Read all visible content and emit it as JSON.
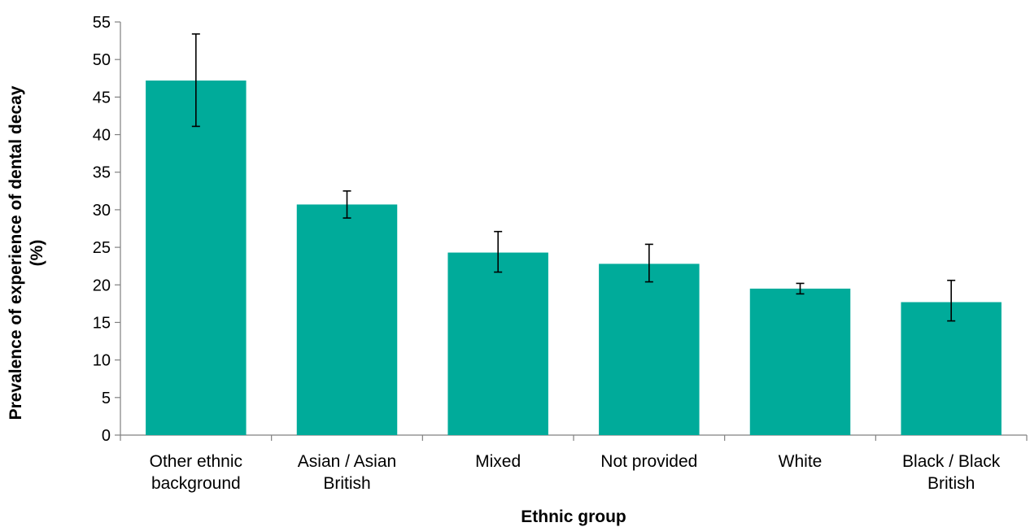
{
  "chart_data": {
    "type": "bar",
    "title": "",
    "xlabel": "Ethnic group",
    "ylabel": "Prevalence of experience of dental decay (%)",
    "ylabel_lines": [
      "Prevalence of experience of dental decay",
      "(%)"
    ],
    "ylim": [
      0,
      55
    ],
    "yticks": [
      0,
      5,
      10,
      15,
      20,
      25,
      30,
      35,
      40,
      45,
      50,
      55
    ],
    "grid": false,
    "legend": "none",
    "bar_color": "#00AB9A",
    "categories": [
      [
        "Other ethnic",
        "background"
      ],
      [
        "Asian / Asian",
        "British"
      ],
      [
        "Mixed"
      ],
      [
        "Not provided"
      ],
      [
        "White"
      ],
      [
        "Black / Black",
        "British"
      ]
    ],
    "values": [
      47.2,
      30.7,
      24.3,
      22.8,
      19.5,
      17.7
    ],
    "error_low": [
      41.1,
      28.9,
      21.7,
      20.4,
      18.8,
      15.2
    ],
    "error_high": [
      53.4,
      32.5,
      27.1,
      25.4,
      20.2,
      20.6
    ]
  }
}
